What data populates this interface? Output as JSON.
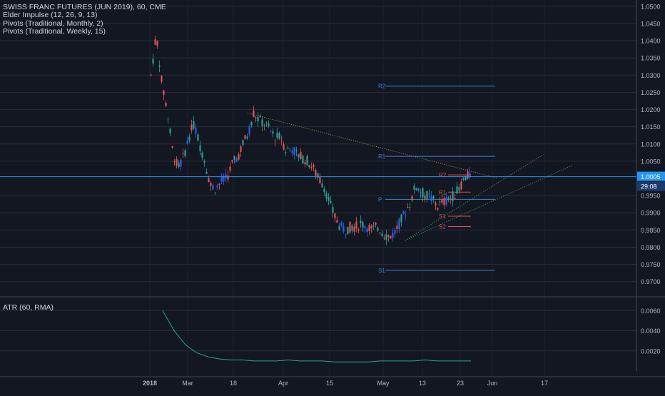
{
  "chart_data": [
    {
      "type": "line",
      "title": "SWISS FRANC FUTURES (JUN 2019), 60, CME",
      "indicators": [
        "Elder Impulse (12, 26, 9, 13)",
        "Pivots (Traditional, Monthly, 2)",
        "Pivots (Traditional, Weekly, 15)"
      ],
      "x_tick_labels": [
        "2018",
        "Mar",
        "18",
        "Apr",
        "15",
        "May",
        "13",
        "23",
        "Jun",
        "17"
      ],
      "y_tick_labels": [
        "1.0500",
        "1.0450",
        "1.0400",
        "1.0350",
        "1.0300",
        "1.0250",
        "1.0200",
        "1.0150",
        "1.0100",
        "1.0050",
        "0.9950",
        "0.9900",
        "0.9850",
        "0.9800",
        "0.9750",
        "0.9700"
      ],
      "ylim": [
        0.966,
        1.051
      ],
      "last_price_label": "1.0005",
      "countdown_label": "29:08",
      "series": [
        {
          "values": [
            1.03,
            1.042,
            1.028,
            1.02,
            1.008,
            1.003,
            1.006,
            1.012,
            1.016,
            1.01,
            1.005,
            0.998,
            0.997,
            0.999,
            1.0,
            1.004,
            1.006,
            1.01,
            1.013,
            1.019,
            1.017,
            1.016,
            1.014,
            1.012,
            1.012,
            1.008,
            1.009,
            1.007,
            1.006,
            1.005,
            1.003,
            1.0,
            0.998,
            0.993,
            0.989,
            0.986,
            0.985,
            0.986,
            0.986,
            0.987,
            0.986,
            0.985,
            0.986,
            0.984,
            0.983,
            0.984,
            0.987,
            0.99,
            0.993,
            0.998,
            0.996,
            0.995,
            0.994,
            0.992,
            0.993,
            0.994,
            0.995,
            0.997,
            1.0,
            1.001
          ]
        }
      ],
      "monthly_pivots": [
        {
          "label": "R2",
          "value": 1.0268
        },
        {
          "label": "R1",
          "value": 1.0064
        },
        {
          "label": "P",
          "value": 0.9939
        },
        {
          "label": "S1",
          "value": 0.9733
        }
      ],
      "weekly_pivots": [
        {
          "label": "R2",
          "value": 1.001
        },
        {
          "label": "R1",
          "value": 0.996
        },
        {
          "label": "S1",
          "value": 0.989
        },
        {
          "label": "S2",
          "value": 0.986
        }
      ],
      "trendlines": [
        "descending resistance",
        "ascending support",
        "ascending support"
      ],
      "colors": {
        "up": "#26a69a",
        "down": "#ef5350",
        "neutral": "#2962ff",
        "monthly_pivot": "#2f88d8",
        "weekly_pivot": "#e0514e",
        "price_line": "#2196f3",
        "trendline": "#4caf50"
      }
    },
    {
      "type": "line",
      "title": "ATR (60, RMA)",
      "y_tick_labels": [
        "0.0060",
        "0.0040",
        "0.0020"
      ],
      "ylim": [
        0.0,
        0.0068
      ],
      "series": [
        {
          "values": [
            0.006,
            0.004,
            0.0026,
            0.0018,
            0.0014,
            0.0012,
            0.0011,
            0.0011,
            0.001,
            0.001,
            0.001,
            0.0011,
            0.001,
            0.001,
            0.001,
            0.0009,
            0.0009,
            0.0009,
            0.0009,
            0.001,
            0.001,
            0.001,
            0.001,
            0.0011,
            0.001,
            0.001,
            0.001,
            0.001
          ]
        }
      ],
      "colors": {
        "line": "#26a69a"
      }
    }
  ]
}
